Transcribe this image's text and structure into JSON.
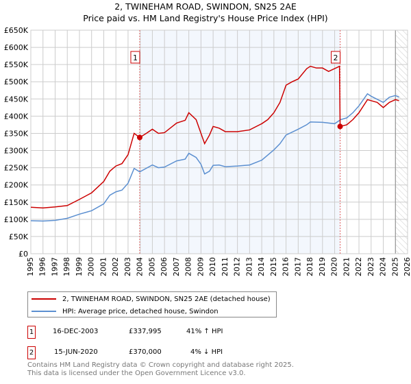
{
  "chart_data": {
    "type": "line",
    "title": "2, TWINEHAM ROAD, SWINDON, SN25 2AE",
    "subtitle": "Price paid vs. HM Land Registry's House Price Index (HPI)",
    "xlim": [
      1995,
      2026
    ],
    "ylim": [
      0,
      650000
    ],
    "x_ticks": [
      "1995",
      "1996",
      "1997",
      "1998",
      "1999",
      "2000",
      "2001",
      "2002",
      "2003",
      "2004",
      "2005",
      "2006",
      "2007",
      "2008",
      "2009",
      "2010",
      "2011",
      "2012",
      "2013",
      "2014",
      "2015",
      "2016",
      "2017",
      "2018",
      "2019",
      "2020",
      "2021",
      "2022",
      "2023",
      "2024",
      "2025",
      "2026"
    ],
    "y_ticks": [
      {
        "v": 0,
        "label": "£0"
      },
      {
        "v": 50000,
        "label": "£50K"
      },
      {
        "v": 100000,
        "label": "£100K"
      },
      {
        "v": 150000,
        "label": "£150K"
      },
      {
        "v": 200000,
        "label": "£200K"
      },
      {
        "v": 250000,
        "label": "£250K"
      },
      {
        "v": 300000,
        "label": "£300K"
      },
      {
        "v": 350000,
        "label": "£350K"
      },
      {
        "v": 400000,
        "label": "£400K"
      },
      {
        "v": 450000,
        "label": "£450K"
      },
      {
        "v": 500000,
        "label": "£500K"
      },
      {
        "v": 550000,
        "label": "£550K"
      },
      {
        "v": 600000,
        "label": "£600K"
      },
      {
        "v": 650000,
        "label": "£650K"
      }
    ],
    "grid": true,
    "shaded_range": [
      2003.96,
      2020.45
    ],
    "hatched_from": 2025.0,
    "series": [
      {
        "name": "2, TWINEHAM ROAD, SWINDON, SN25 2AE (detached house)",
        "color": "#cc0000",
        "points": [
          [
            1995,
            135000
          ],
          [
            1996,
            133000
          ],
          [
            1997,
            136000
          ],
          [
            1998,
            140000
          ],
          [
            1999,
            158000
          ],
          [
            2000,
            177000
          ],
          [
            2001,
            210000
          ],
          [
            2001.5,
            240000
          ],
          [
            2002,
            255000
          ],
          [
            2002.5,
            262000
          ],
          [
            2003,
            288000
          ],
          [
            2003.5,
            350000
          ],
          [
            2003.96,
            337995
          ],
          [
            2004.5,
            350000
          ],
          [
            2005,
            362000
          ],
          [
            2005.5,
            350000
          ],
          [
            2006,
            352000
          ],
          [
            2007,
            380000
          ],
          [
            2007.7,
            388000
          ],
          [
            2008,
            410000
          ],
          [
            2008.6,
            390000
          ],
          [
            2009,
            350000
          ],
          [
            2009.3,
            320000
          ],
          [
            2009.7,
            345000
          ],
          [
            2010,
            370000
          ],
          [
            2010.5,
            365000
          ],
          [
            2011,
            355000
          ],
          [
            2012,
            355000
          ],
          [
            2013,
            360000
          ],
          [
            2014,
            378000
          ],
          [
            2014.5,
            390000
          ],
          [
            2015,
            410000
          ],
          [
            2015.5,
            440000
          ],
          [
            2016,
            490000
          ],
          [
            2016.5,
            500000
          ],
          [
            2017,
            508000
          ],
          [
            2017.7,
            538000
          ],
          [
            2018,
            545000
          ],
          [
            2018.5,
            540000
          ],
          [
            2019,
            540000
          ],
          [
            2019.5,
            530000
          ],
          [
            2020.4,
            545000
          ],
          [
            2020.45,
            370000
          ],
          [
            2021,
            375000
          ],
          [
            2021.5,
            390000
          ],
          [
            2022,
            410000
          ],
          [
            2022.7,
            448000
          ],
          [
            2023,
            445000
          ],
          [
            2023.5,
            440000
          ],
          [
            2024,
            425000
          ],
          [
            2024.5,
            440000
          ],
          [
            2025,
            448000
          ],
          [
            2025.3,
            445000
          ]
        ]
      },
      {
        "name": "HPI: Average price, detached house, Swindon",
        "color": "#5b8fd0",
        "points": [
          [
            1995,
            96000
          ],
          [
            1996,
            95000
          ],
          [
            1997,
            97000
          ],
          [
            1998,
            103000
          ],
          [
            1999,
            115000
          ],
          [
            2000,
            125000
          ],
          [
            2001,
            145000
          ],
          [
            2001.5,
            170000
          ],
          [
            2002,
            180000
          ],
          [
            2002.5,
            185000
          ],
          [
            2003,
            205000
          ],
          [
            2003.5,
            248000
          ],
          [
            2003.96,
            238000
          ],
          [
            2005,
            258000
          ],
          [
            2005.5,
            250000
          ],
          [
            2006,
            252000
          ],
          [
            2007,
            270000
          ],
          [
            2007.7,
            275000
          ],
          [
            2008,
            292000
          ],
          [
            2008.6,
            280000
          ],
          [
            2009,
            260000
          ],
          [
            2009.3,
            232000
          ],
          [
            2009.7,
            240000
          ],
          [
            2010,
            257000
          ],
          [
            2010.5,
            258000
          ],
          [
            2011,
            253000
          ],
          [
            2012,
            255000
          ],
          [
            2013,
            258000
          ],
          [
            2014,
            272000
          ],
          [
            2015,
            302000
          ],
          [
            2015.5,
            320000
          ],
          [
            2016,
            345000
          ],
          [
            2017,
            362000
          ],
          [
            2017.7,
            375000
          ],
          [
            2018,
            383000
          ],
          [
            2019,
            382000
          ],
          [
            2020,
            378000
          ],
          [
            2020.5,
            390000
          ],
          [
            2021,
            395000
          ],
          [
            2021.5,
            410000
          ],
          [
            2022,
            430000
          ],
          [
            2022.7,
            465000
          ],
          [
            2023,
            458000
          ],
          [
            2024,
            440000
          ],
          [
            2024.5,
            455000
          ],
          [
            2025,
            460000
          ],
          [
            2025.3,
            455000
          ]
        ]
      }
    ],
    "markers": [
      {
        "label": "1",
        "x": 2003.96,
        "y": 337995
      },
      {
        "label": "2",
        "x": 2020.45,
        "y": 370000
      }
    ]
  },
  "legend": {
    "items": [
      {
        "label": "2, TWINEHAM ROAD, SWINDON, SN25 2AE (detached house)",
        "color": "#cc0000"
      },
      {
        "label": "HPI: Average price, detached house, Swindon",
        "color": "#5b8fd0"
      }
    ]
  },
  "sales": [
    {
      "num": "1",
      "date": "16-DEC-2003",
      "price": "£337,995",
      "hpi": "41% ↑ HPI"
    },
    {
      "num": "2",
      "date": "15-JUN-2020",
      "price": "£370,000",
      "hpi": "4% ↓ HPI"
    }
  ],
  "footer": {
    "line1": "Contains HM Land Registry data © Crown copyright and database right 2025.",
    "line2": "This data is licensed under the Open Government Licence v3.0."
  }
}
